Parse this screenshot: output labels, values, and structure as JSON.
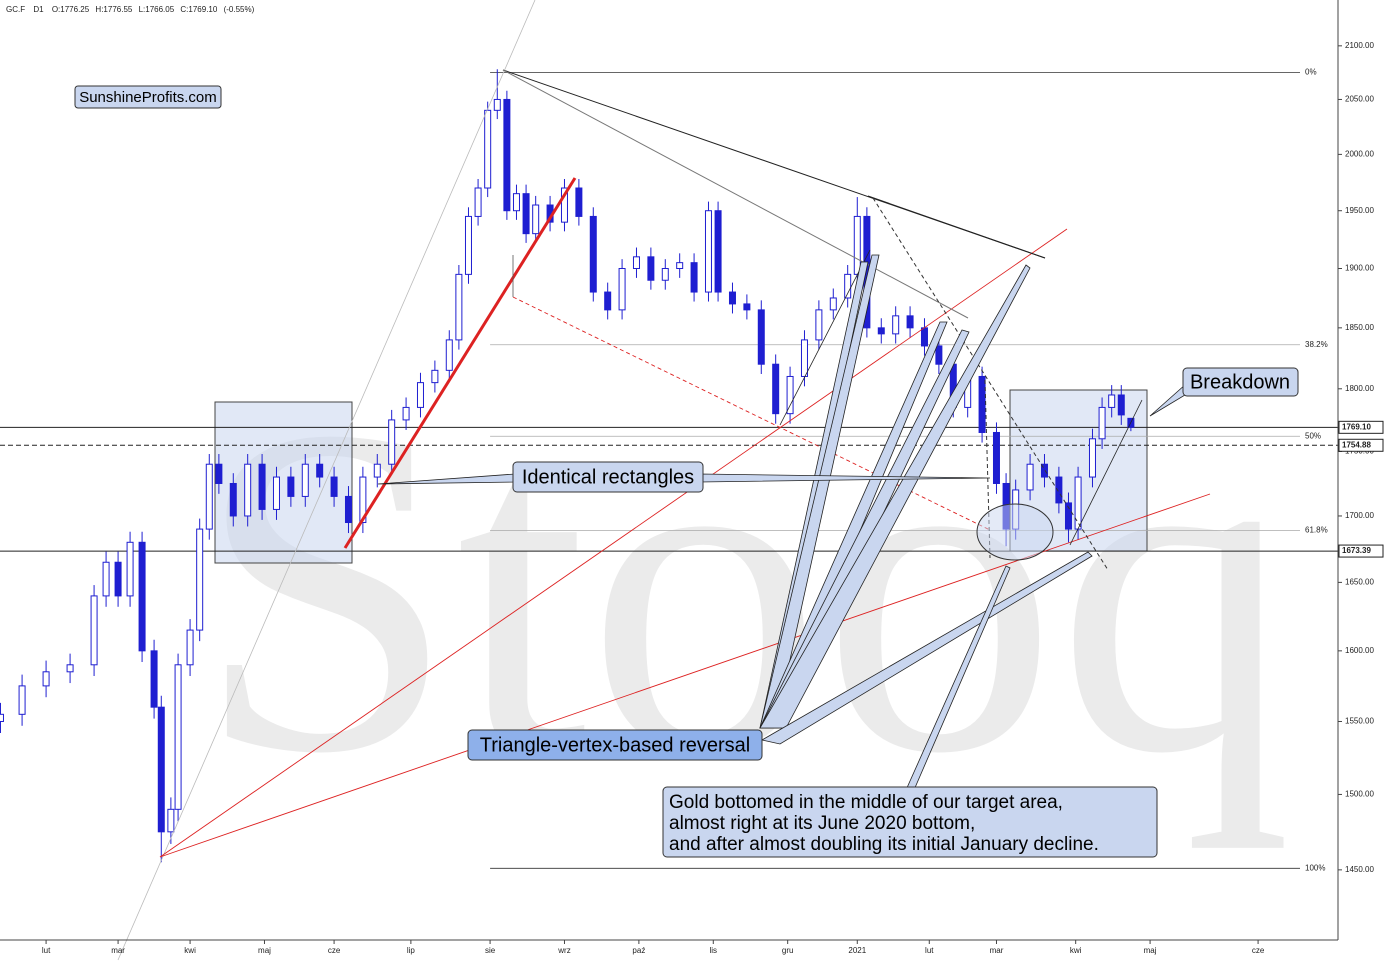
{
  "header": {
    "symbol": "GC.F",
    "interval": "D1",
    "open_label": "O:",
    "high_label": "H:",
    "low_label": "L:",
    "close_label": "C:",
    "change": "(-0.55%)"
  },
  "chart_data": {
    "type": "candlestick",
    "log_scale": true,
    "color": "#1f1fd1",
    "up_fill": "#ffffff",
    "x": [
      -19,
      -10,
      0,
      10,
      20,
      25,
      30,
      35,
      40,
      45,
      48,
      52,
      55,
      60,
      64,
      68,
      72,
      78,
      84,
      90,
      96,
      102,
      108,
      114,
      120,
      126,
      132,
      138,
      144,
      150,
      156,
      162,
      168,
      172,
      176,
      180,
      184,
      188,
      192,
      196,
      200,
      204,
      210,
      216,
      222,
      228,
      234,
      240,
      246,
      252,
      258,
      264,
      270,
      276,
      280,
      286,
      292,
      298,
      304,
      310,
      316,
      322,
      328,
      334,
      338,
      342,
      348,
      354,
      360,
      366,
      372,
      378,
      384,
      390,
      396,
      400,
      404,
      410,
      416,
      422,
      426,
      430,
      436,
      440,
      444,
      448,
      452
    ],
    "open": [
      1550,
      1555,
      1575,
      1585,
      1590,
      1640,
      1665,
      1640,
      1680,
      1600,
      1560,
      1475,
      1490,
      1590,
      1615,
      1690,
      1740,
      1725,
      1700,
      1740,
      1705,
      1730,
      1715,
      1740,
      1730,
      1715,
      1695,
      1730,
      1740,
      1775,
      1785,
      1805,
      1815,
      1840,
      1895,
      1945,
      1970,
      2040,
      2050,
      1950,
      1965,
      1930,
      1955,
      1940,
      1970,
      1945,
      1880,
      1865,
      1900,
      1910,
      1890,
      1900,
      1905,
      1880,
      1950,
      1880,
      1870,
      1865,
      1820,
      1780,
      1810,
      1840,
      1865,
      1875,
      1895,
      1945,
      1850,
      1845,
      1860,
      1850,
      1835,
      1820,
      1785,
      1810,
      1765,
      1725,
      1690,
      1720,
      1740,
      1730,
      1710,
      1690,
      1730,
      1760,
      1785,
      1795,
      1776.25
    ],
    "high": [
      1563,
      1583,
      1593,
      1598,
      1648,
      1673,
      1673,
      1688,
      1688,
      1608,
      1568,
      1498,
      1598,
      1623,
      1698,
      1748,
      1748,
      1733,
      1748,
      1748,
      1738,
      1738,
      1748,
      1748,
      1738,
      1723,
      1738,
      1748,
      1783,
      1793,
      1813,
      1823,
      1848,
      1903,
      1953,
      1978,
      2048,
      2078,
      2058,
      1973,
      1973,
      1963,
      1963,
      1978,
      1978,
      1953,
      1888,
      1908,
      1918,
      1918,
      1908,
      1913,
      1913,
      1958,
      1958,
      1888,
      1878,
      1873,
      1828,
      1818,
      1848,
      1873,
      1883,
      1903,
      1962,
      1953,
      1858,
      1868,
      1868,
      1858,
      1843,
      1828,
      1818,
      1818,
      1773,
      1733,
      1728,
      1748,
      1748,
      1738,
      1718,
      1738,
      1768,
      1793,
      1803,
      1803,
      1776.55
    ],
    "low": [
      1542,
      1547,
      1567,
      1577,
      1582,
      1632,
      1632,
      1632,
      1592,
      1552,
      1455,
      1467,
      1482,
      1582,
      1607,
      1682,
      1717,
      1692,
      1692,
      1697,
      1697,
      1707,
      1707,
      1722,
      1707,
      1687,
      1687,
      1722,
      1732,
      1767,
      1777,
      1797,
      1807,
      1832,
      1887,
      1937,
      1962,
      2032,
      1942,
      1942,
      1922,
      1922,
      1932,
      1932,
      1937,
      1872,
      1857,
      1857,
      1892,
      1882,
      1882,
      1892,
      1872,
      1872,
      1872,
      1862,
      1857,
      1812,
      1772,
      1772,
      1802,
      1832,
      1857,
      1867,
      1887,
      1842,
      1837,
      1837,
      1842,
      1827,
      1812,
      1777,
      1777,
      1757,
      1717,
      1677,
      1682,
      1712,
      1722,
      1702,
      1680,
      1682,
      1722,
      1752,
      1777,
      1771,
      1766.05
    ],
    "close": [
      1555,
      1575,
      1585,
      1590,
      1640,
      1665,
      1640,
      1680,
      1600,
      1560,
      1475,
      1490,
      1590,
      1615,
      1690,
      1740,
      1725,
      1700,
      1740,
      1705,
      1730,
      1715,
      1740,
      1730,
      1715,
      1695,
      1730,
      1740,
      1775,
      1785,
      1805,
      1815,
      1840,
      1895,
      1945,
      1970,
      2040,
      2050,
      1950,
      1965,
      1930,
      1955,
      1940,
      1970,
      1945,
      1880,
      1865,
      1900,
      1910,
      1890,
      1900,
      1905,
      1880,
      1950,
      1880,
      1870,
      1865,
      1820,
      1780,
      1810,
      1840,
      1865,
      1875,
      1895,
      1945,
      1850,
      1845,
      1860,
      1850,
      1835,
      1820,
      1785,
      1810,
      1765,
      1725,
      1690,
      1720,
      1740,
      1730,
      1710,
      1690,
      1730,
      1760,
      1785,
      1795,
      1779,
      1769.1
    ],
    "xlim": [
      -19.2,
      538.3
    ],
    "xticks": [
      {
        "value": 0,
        "label": "lut"
      },
      {
        "value": 30,
        "label": "mar"
      },
      {
        "value": 60,
        "label": "kwi"
      },
      {
        "value": 91,
        "label": "maj"
      },
      {
        "value": 120,
        "label": "cze"
      },
      {
        "value": 152,
        "label": "lip"
      },
      {
        "value": 185,
        "label": "sie"
      },
      {
        "value": 216,
        "label": "wrz"
      },
      {
        "value": 247,
        "label": "paź"
      },
      {
        "value": 278,
        "label": "lis"
      },
      {
        "value": 309,
        "label": "gru"
      },
      {
        "value": 338,
        "label": "2021"
      },
      {
        "value": 368,
        "label": "lut"
      },
      {
        "value": 396,
        "label": "mar"
      },
      {
        "value": 429,
        "label": "kwi"
      },
      {
        "value": 460,
        "label": "maj"
      },
      {
        "value": 505,
        "label": "cze"
      }
    ],
    "ylim": [
      1405,
      2115
    ],
    "yticks": [
      {
        "value": 1450,
        "label": "1450.00"
      },
      {
        "value": 1500,
        "label": "1500.00"
      },
      {
        "value": 1550,
        "label": "1550.00"
      },
      {
        "value": 1600,
        "label": "1600.00"
      },
      {
        "value": 1650,
        "label": "1650.00"
      },
      {
        "value": 1700,
        "label": "1700.00"
      },
      {
        "value": 1750,
        "label": "1750.00"
      },
      {
        "value": 1800,
        "label": "1800.00"
      },
      {
        "value": 1850,
        "label": "1850.00"
      },
      {
        "value": 1900,
        "label": "1900.00"
      },
      {
        "value": 1950,
        "label": "1950.00"
      },
      {
        "value": 2000,
        "label": "2000.00"
      },
      {
        "value": 2050,
        "label": "2050.00"
      },
      {
        "value": 2100,
        "label": "2100.00"
      }
    ],
    "price_lines": [
      {
        "value": 1769.1,
        "label": "1769.10",
        "style": "solid"
      },
      {
        "value": 1754.88,
        "label": "1754.88",
        "style": "dashed"
      },
      {
        "value": 1673.39,
        "label": "1673.39",
        "style": "solid"
      }
    ],
    "fib_levels": [
      {
        "value": 2075,
        "label": "0%"
      },
      {
        "value": 1836,
        "label": "38.2%"
      },
      {
        "value": 1762,
        "label": "50%"
      },
      {
        "value": 1689,
        "label": "61.8%"
      },
      {
        "value": 1451,
        "label": "100%"
      }
    ],
    "fib_start": 185,
    "annotations": {
      "brand": "SunshineProfits.com",
      "rectangles": "Identical rectangles",
      "breakdown": "Breakdown",
      "reversal": "Triangle-vertex-based reversal",
      "gold_note": [
        "Gold bottomed in the middle of our target area,",
        "almost right at its June 2020 bottom,",
        "and after almost doubling its initial January decline."
      ]
    },
    "watermark": "Stooq"
  }
}
